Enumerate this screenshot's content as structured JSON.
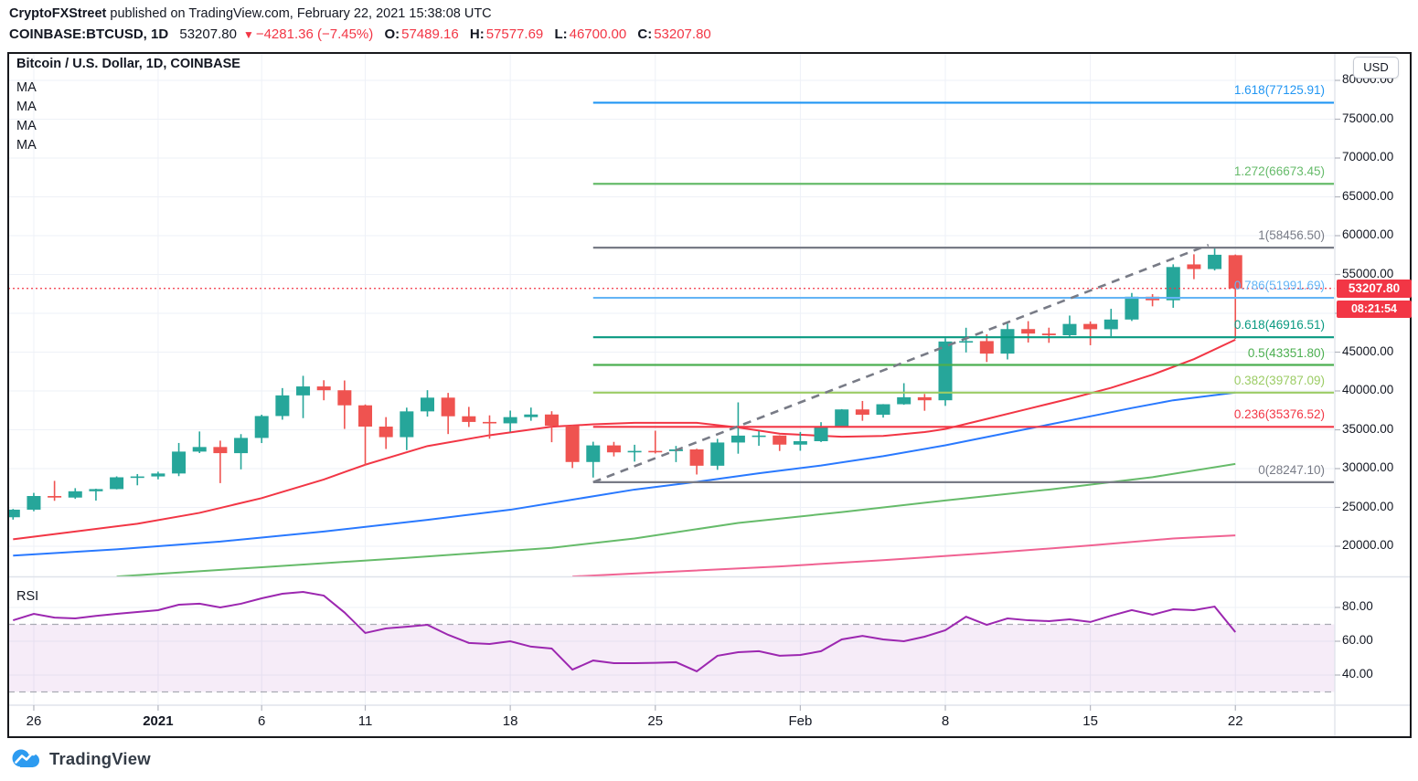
{
  "header": {
    "byline_author": "CryptoFXStreet",
    "byline_rest": " published on TradingView.com, February 22, 2021 15:38:08 UTC",
    "symbol": "COINBASE:BTCUSD, 1D",
    "last_price": "53207.80",
    "direction_icon": "▼",
    "change": "−4281.36 (−7.45%)",
    "o_label": "O:",
    "o": "57489.16",
    "h_label": "H:",
    "h": "57577.69",
    "l_label": "L:",
    "l": "46700.00",
    "c_label": "C:",
    "c": "53207.80"
  },
  "chart": {
    "title": "Bitcoin / U.S. Dollar, 1D, COINBASE",
    "ma_labels": [
      "MA",
      "MA",
      "MA",
      "MA"
    ],
    "currency_button": "USD",
    "price_badge": "53207.80",
    "countdown_badge": "08:21:54",
    "rsi_label": "RSI"
  },
  "footer": {
    "logo_text": "TradingView"
  },
  "colors": {
    "up": "#26a69a",
    "down": "#ef5350",
    "accent_red": "#f23645",
    "grid": "#eef1f7",
    "axis_line": "#e0e3eb",
    "tick": "#b2b5be",
    "text": "#131722",
    "rsi": "#9c27b0",
    "rsi_band_fill": "#9c27b0",
    "trend": "#787b86"
  },
  "chart_data": {
    "type": "candlestick",
    "symbol": "BTCUSD 1D",
    "ylim": [
      16100,
      83500
    ],
    "price_axis_labels": [
      "80000.00",
      "75000.00",
      "70000.00",
      "65000.00",
      "60000.00",
      "55000.00",
      "50000.00",
      "45000.00",
      "40000.00",
      "35000.00",
      "30000.00",
      "25000.00",
      "20000.00"
    ],
    "price_axis_values": [
      80000,
      75000,
      70000,
      65000,
      60000,
      55000,
      50000,
      45000,
      40000,
      35000,
      30000,
      25000,
      20000
    ],
    "time_axis_labels": [
      {
        "text": "26",
        "day": 1,
        "bold": false
      },
      {
        "text": "2021",
        "day": 7,
        "bold": true
      },
      {
        "text": "6",
        "day": 12,
        "bold": false
      },
      {
        "text": "11",
        "day": 17,
        "bold": false
      },
      {
        "text": "18",
        "day": 24,
        "bold": false
      },
      {
        "text": "25",
        "day": 31,
        "bold": false
      },
      {
        "text": "Feb",
        "day": 38,
        "bold": false
      },
      {
        "text": "8",
        "day": 45,
        "bold": false
      },
      {
        "text": "15",
        "day": 52,
        "bold": false
      },
      {
        "text": "22",
        "day": 59,
        "bold": false
      }
    ],
    "candles_ohlc": [
      [
        23735,
        24800,
        23430,
        24710
      ],
      [
        24710,
        26870,
        24510,
        26470
      ],
      [
        26470,
        28420,
        25850,
        26270
      ],
      [
        26270,
        27480,
        26100,
        27080
      ],
      [
        27080,
        27410,
        25880,
        27360
      ],
      [
        27360,
        29000,
        27320,
        28880
      ],
      [
        28880,
        29300,
        27850,
        28990
      ],
      [
        28990,
        29600,
        28620,
        29370
      ],
      [
        29370,
        33300,
        29030,
        32190
      ],
      [
        32190,
        34780,
        32000,
        32780
      ],
      [
        32780,
        33600,
        28130,
        31990
      ],
      [
        31990,
        34440,
        29900,
        33950
      ],
      [
        33950,
        36940,
        33290,
        36770
      ],
      [
        36770,
        40370,
        36300,
        39430
      ],
      [
        39430,
        41950,
        36500,
        40580
      ],
      [
        40580,
        41380,
        38800,
        40090
      ],
      [
        40090,
        41350,
        35110,
        38150
      ],
      [
        38150,
        38260,
        30420,
        35410
      ],
      [
        35410,
        36630,
        32530,
        34050
      ],
      [
        34050,
        37850,
        32380,
        37370
      ],
      [
        37370,
        40100,
        36700,
        39140
      ],
      [
        39140,
        39750,
        34450,
        36740
      ],
      [
        36740,
        37950,
        35360,
        36010
      ],
      [
        36010,
        36860,
        33850,
        35830
      ],
      [
        35830,
        37470,
        34740,
        36630
      ],
      [
        36630,
        37860,
        36160,
        36970
      ],
      [
        36970,
        37390,
        33400,
        35510
      ],
      [
        35510,
        35600,
        30070,
        30850
      ],
      [
        30850,
        33460,
        28850,
        32990
      ],
      [
        32990,
        33440,
        31570,
        32090
      ],
      [
        32090,
        33070,
        30900,
        32280
      ],
      [
        32280,
        34880,
        31950,
        32250
      ],
      [
        32250,
        32920,
        30840,
        32470
      ],
      [
        32470,
        32560,
        29240,
        30370
      ],
      [
        30370,
        33830,
        29840,
        33360
      ],
      [
        33360,
        38530,
        31920,
        34250
      ],
      [
        34250,
        34830,
        32940,
        34260
      ],
      [
        34260,
        34290,
        32270,
        33090
      ],
      [
        33090,
        34720,
        32300,
        33530
      ],
      [
        33530,
        35980,
        33420,
        35470
      ],
      [
        35470,
        37660,
        35360,
        37620
      ],
      [
        37620,
        38710,
        36160,
        36940
      ],
      [
        36940,
        38310,
        36570,
        38290
      ],
      [
        38290,
        41000,
        38220,
        39190
      ],
      [
        39190,
        39620,
        37450,
        38800
      ],
      [
        38800,
        46790,
        38080,
        46370
      ],
      [
        46370,
        48140,
        44960,
        46420
      ],
      [
        46420,
        47310,
        43730,
        44810
      ],
      [
        44810,
        48680,
        44060,
        47970
      ],
      [
        47970,
        48990,
        46240,
        47390
      ],
      [
        47390,
        48150,
        46200,
        47180
      ],
      [
        47180,
        49710,
        47010,
        48630
      ],
      [
        48630,
        48950,
        45890,
        47950
      ],
      [
        47950,
        50580,
        47050,
        49200
      ],
      [
        49200,
        52620,
        49010,
        52140
      ],
      [
        52140,
        52470,
        50900,
        51680
      ],
      [
        51680,
        56310,
        50710,
        55960
      ],
      [
        56300,
        57600,
        54400,
        55700
      ],
      [
        55700,
        58370,
        55520,
        57540
      ],
      [
        57489,
        57577,
        46700,
        53207.8
      ]
    ],
    "moving_averages": [
      {
        "name": "ma-fast",
        "color": "#f23645",
        "points": [
          [
            0,
            20900
          ],
          [
            3,
            21900
          ],
          [
            6,
            22900
          ],
          [
            9,
            24300
          ],
          [
            12,
            26200
          ],
          [
            15,
            28600
          ],
          [
            17,
            30500
          ],
          [
            20,
            32900
          ],
          [
            23,
            34300
          ],
          [
            26,
            35400
          ],
          [
            28,
            35700
          ],
          [
            30,
            35900
          ],
          [
            33,
            35900
          ],
          [
            35,
            35300
          ],
          [
            37,
            34500
          ],
          [
            40,
            34100
          ],
          [
            42,
            34200
          ],
          [
            44,
            34700
          ],
          [
            45,
            35100
          ],
          [
            47,
            36400
          ],
          [
            49,
            37700
          ],
          [
            51,
            39000
          ],
          [
            53,
            40400
          ],
          [
            55,
            42100
          ],
          [
            57,
            44100
          ],
          [
            59,
            46600
          ]
        ]
      },
      {
        "name": "ma-mid",
        "color": "#2979ff",
        "points": [
          [
            0,
            18800
          ],
          [
            5,
            19600
          ],
          [
            10,
            20600
          ],
          [
            15,
            21900
          ],
          [
            20,
            23400
          ],
          [
            24,
            24700
          ],
          [
            27,
            26000
          ],
          [
            30,
            27300
          ],
          [
            33,
            28300
          ],
          [
            36,
            29400
          ],
          [
            39,
            30400
          ],
          [
            42,
            31600
          ],
          [
            45,
            33000
          ],
          [
            48,
            34600
          ],
          [
            51,
            36200
          ],
          [
            54,
            37800
          ],
          [
            56,
            38800
          ],
          [
            59,
            39800
          ]
        ]
      },
      {
        "name": "ma-slow",
        "color": "#66bb6a",
        "points": [
          [
            5,
            16100
          ],
          [
            12,
            17300
          ],
          [
            19,
            18500
          ],
          [
            26,
            19800
          ],
          [
            30,
            21000
          ],
          [
            35,
            23000
          ],
          [
            40,
            24400
          ],
          [
            45,
            25900
          ],
          [
            50,
            27300
          ],
          [
            55,
            28900
          ],
          [
            59,
            30600
          ]
        ]
      },
      {
        "name": "ma-slowest",
        "color": "#f06292",
        "points": [
          [
            27,
            16100
          ],
          [
            32,
            16750
          ],
          [
            37,
            17400
          ],
          [
            42,
            18200
          ],
          [
            47,
            19100
          ],
          [
            52,
            20100
          ],
          [
            56,
            21000
          ],
          [
            59,
            21400
          ]
        ]
      }
    ],
    "fib_levels": [
      {
        "label": "1.618(77125.91)",
        "price": 77125.91,
        "color": "#2196f3"
      },
      {
        "label": "1.272(66673.45)",
        "price": 66673.45,
        "color": "#66bb6a"
      },
      {
        "label": "1(58456.50)",
        "price": 58456.5,
        "color": "#787b86"
      },
      {
        "label": "0.786(51991.69)",
        "price": 51991.69,
        "color": "#64b5f6"
      },
      {
        "label": "0.618(46916.51)",
        "price": 46916.51,
        "color": "#089981"
      },
      {
        "label": "0.5(43351.80)",
        "price": 43351.8,
        "color": "#4caf50"
      },
      {
        "label": "0.382(39787.09)",
        "price": 39787.09,
        "color": "#9ccc65"
      },
      {
        "label": "0.236(35376.52)",
        "price": 35376.52,
        "color": "#f23645"
      },
      {
        "label": "0(28247.10)",
        "price": 28247.1,
        "color": "#787b86"
      }
    ],
    "fib_start_day": 28,
    "trendline": {
      "from_day": 28,
      "from_price": 28250,
      "to_day": 57.7,
      "to_price": 58800
    },
    "price_line": {
      "price": 53207.8,
      "color": "#f23645"
    },
    "rsi": {
      "color": "#9c27b0",
      "upper_band": 70,
      "lower_band": 30,
      "tick_labels": [
        "80.00",
        "60.00",
        "40.00"
      ],
      "tick_values": [
        80,
        60,
        40
      ],
      "values": [
        72.4,
        76.2,
        74,
        73.5,
        75,
        76.2,
        77.3,
        78.4,
        81.6,
        82.2,
        80,
        82.2,
        85.4,
        88.1,
        89.2,
        87,
        77,
        64.9,
        67.6,
        68.6,
        69.7,
        63.8,
        59,
        58.4,
        60,
        56.8,
        55.7,
        43.2,
        48.6,
        47,
        47,
        47.2,
        47.6,
        42.2,
        51.4,
        53.5,
        54.1,
        51.4,
        51.9,
        54.1,
        61.1,
        63.2,
        61.1,
        60,
        62.7,
        66.5,
        74.5,
        69.7,
        73.5,
        72.4,
        71.9,
        73,
        71.4,
        75.1,
        78.4,
        75.7,
        78.9,
        78.4,
        80.5,
        65.4
      ]
    }
  }
}
